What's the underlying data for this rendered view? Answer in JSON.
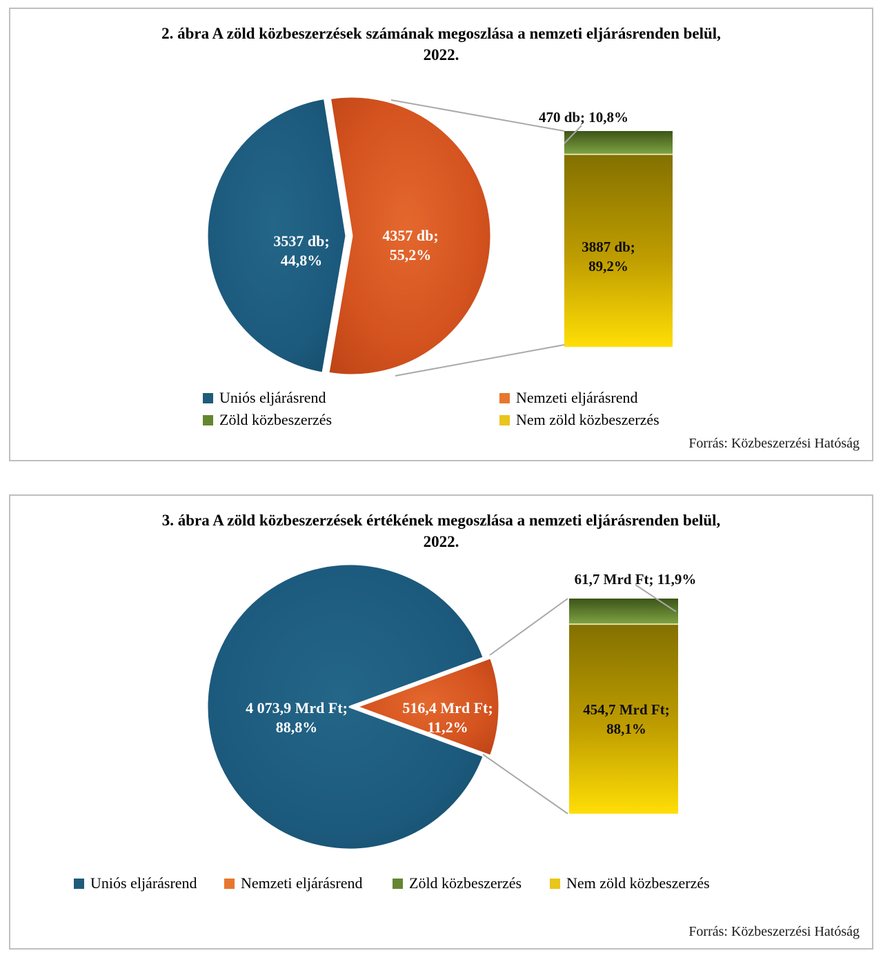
{
  "colors": {
    "blue": "#1C5A7D",
    "orange": "#D4531F",
    "green": "#5C7F2D",
    "yellow": "#E2BC00",
    "legend_blue": "#1F5C7A",
    "legend_orange": "#E8772E",
    "legend_green": "#64862F",
    "legend_yellow": "#EAC51B",
    "connector_gray": "#A9A9A9",
    "panel_border": "#BFBFBF"
  },
  "chart_data": [
    {
      "type": "pie",
      "variant": "pie-with-breakdown-bar",
      "title": "2. ábra A zöld közbeszerzések számának megoszlása a nemzeti eljárásrenden belül, 2022.",
      "title_lines": [
        "2. ábra A zöld közbeszerzések számának megoszlása a nemzeti eljárásrenden belül,",
        "2022."
      ],
      "unit": "db",
      "pie": {
        "slices": [
          {
            "name": "Uniós eljárásrend",
            "value": 3537,
            "pct": 44.8,
            "label_lines": [
              "3537 db;",
              "44,8%"
            ],
            "color": "#1C5A7D"
          },
          {
            "name": "Nemzeti eljárásrend",
            "value": 4357,
            "pct": 55.2,
            "label_lines": [
              "4357 db;",
              "55,2%"
            ],
            "color": "#D4531F"
          }
        ]
      },
      "breakdown_bar": {
        "of_slice": "Nemzeti eljárásrend",
        "segments": [
          {
            "name": "Zöld közbeszerzés",
            "value": 470,
            "pct": 10.8,
            "label": "470 db; 10,8%",
            "color": "#5C7F2D"
          },
          {
            "name": "Nem zöld közbeszerzés",
            "value": 3887,
            "pct": 89.2,
            "label_lines": [
              "3887 db;",
              "89,2%"
            ],
            "color": "#E2BC00"
          }
        ]
      },
      "legend": [
        {
          "label": "Uniós eljárásrend",
          "color": "#1F5C7A"
        },
        {
          "label": "Nemzeti eljárásrend",
          "color": "#E8772E"
        },
        {
          "label": "Zöld közbeszerzés",
          "color": "#64862F"
        },
        {
          "label": "Nem zöld közbeszerzés",
          "color": "#EAC51B"
        }
      ],
      "legend_layout": "two-column",
      "source": "Forrás: Közbeszerzési Hatóság"
    },
    {
      "type": "pie",
      "variant": "pie-with-breakdown-bar",
      "title": "3. ábra A zöld közbeszerzések értékének megoszlása a nemzeti eljárásrenden belül, 2022.",
      "title_lines": [
        "3. ábra A zöld közbeszerzések értékének megoszlása a nemzeti eljárásrenden belül,",
        "2022."
      ],
      "unit": "Mrd Ft",
      "pie": {
        "slices": [
          {
            "name": "Uniós eljárásrend",
            "value": 4073.9,
            "pct": 88.8,
            "label_lines": [
              "4 073,9 Mrd Ft;",
              "88,8%"
            ],
            "color": "#1C5A7D"
          },
          {
            "name": "Nemzeti eljárásrend",
            "value": 516.4,
            "pct": 11.2,
            "label_lines": [
              "516,4 Mrd Ft;",
              "11,2%"
            ],
            "color": "#D4531F"
          }
        ]
      },
      "breakdown_bar": {
        "of_slice": "Nemzeti eljárásrend",
        "segments": [
          {
            "name": "Zöld közbeszerzés",
            "value": 61.7,
            "pct": 11.9,
            "label": "61,7 Mrd Ft; 11,9%",
            "color": "#5C7F2D"
          },
          {
            "name": "Nem zöld közbeszerzés",
            "value": 454.7,
            "pct": 88.1,
            "label_lines": [
              "454,7 Mrd Ft;",
              "88,1%"
            ],
            "color": "#E2BC00"
          }
        ]
      },
      "legend": [
        {
          "label": "Uniós eljárásrend",
          "color": "#1F5C7A"
        },
        {
          "label": "Nemzeti eljárásrend",
          "color": "#E8772E"
        },
        {
          "label": "Zöld közbeszerzés",
          "color": "#64862F"
        },
        {
          "label": "Nem zöld közbeszerzés",
          "color": "#EAC51B"
        }
      ],
      "legend_layout": "single-row",
      "source": "Forrás: Közbeszerzési Hatóság"
    }
  ]
}
